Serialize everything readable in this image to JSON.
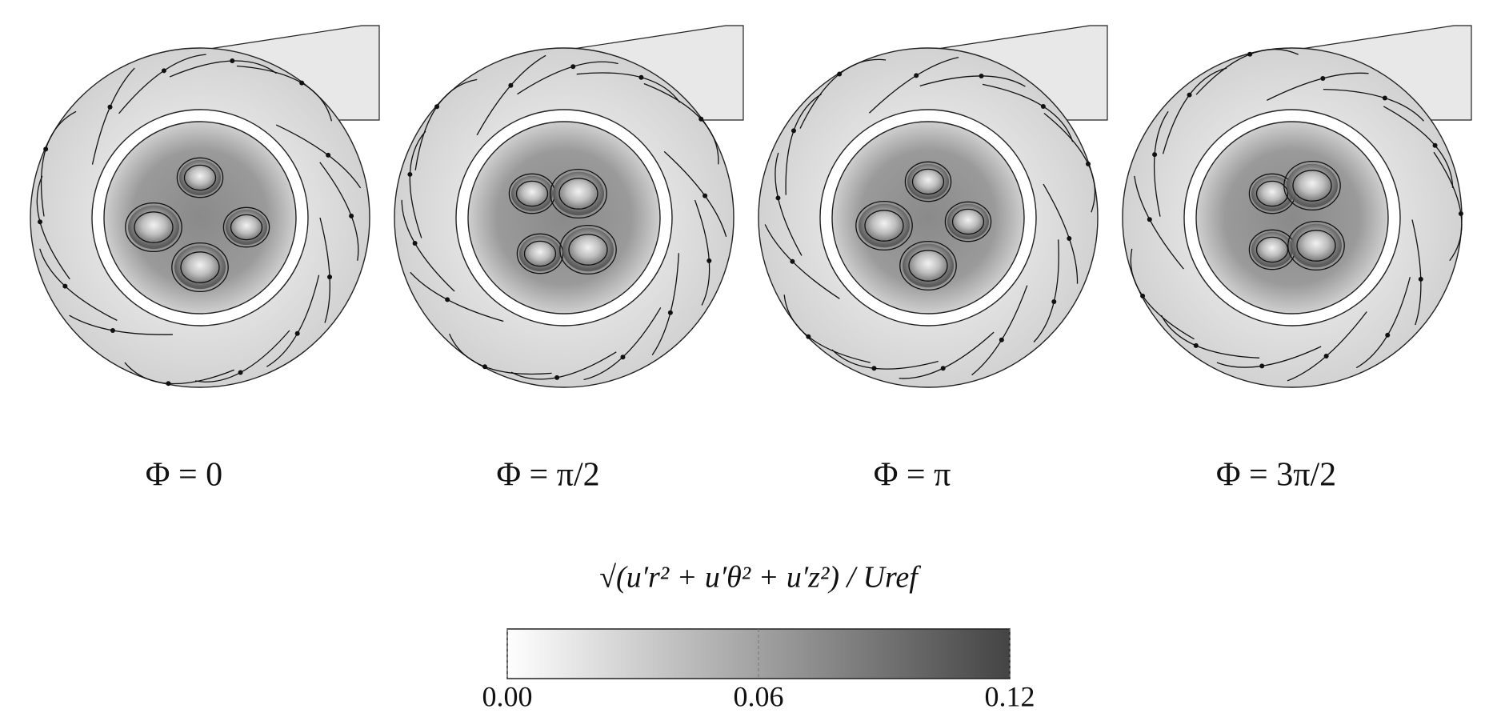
{
  "figure": {
    "panels": [
      {
        "label": "Φ = 0"
      },
      {
        "label": "Φ = π/2"
      },
      {
        "label": "Φ = π"
      },
      {
        "label": "Φ = 3π/2"
      }
    ],
    "colorbar": {
      "title": "√(u′r² + u′θ² + u′z²) / Uref",
      "range": [
        0,
        0.12
      ],
      "colors": [
        "#ffffff",
        "#444444"
      ],
      "ticks": [
        {
          "value": 0,
          "label": "0.00"
        },
        {
          "value": 0.06,
          "label": "0.06"
        },
        {
          "value": 0.12,
          "label": "0.12"
        }
      ]
    }
  }
}
